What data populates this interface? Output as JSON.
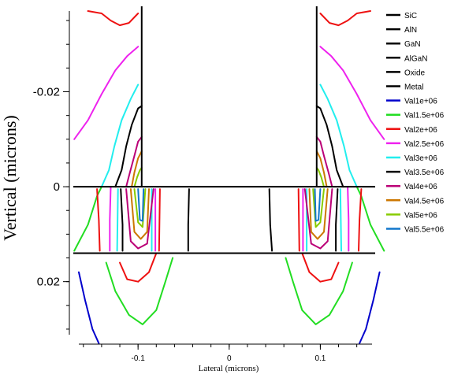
{
  "chart_data": {
    "type": "line",
    "xlabel": "Lateral (microns)",
    "ylabel": "Vertical (microns)",
    "xlim": [
      -0.165,
      0.155
    ],
    "ylim": [
      -0.038,
      0.032
    ],
    "y_inverted": true,
    "x_ticks": [
      -0.1,
      0,
      0.1
    ],
    "x_tick_labels": [
      "-0.1",
      "0",
      "0.1"
    ],
    "y_ticks": [
      -0.02,
      0,
      0.02
    ],
    "y_tick_labels": [
      "-0.02",
      "0",
      "0.02"
    ],
    "legend_position": "right",
    "legend": [
      {
        "label": "SiC",
        "color": "#000000"
      },
      {
        "label": "AlN",
        "color": "#000000"
      },
      {
        "label": "GaN",
        "color": "#000000"
      },
      {
        "label": "AlGaN",
        "color": "#000000"
      },
      {
        "label": "Oxide",
        "color": "#000000"
      },
      {
        "label": "Metal",
        "color": "#000000"
      },
      {
        "label": "Val1e+06",
        "color": "#0000cc"
      },
      {
        "label": "Val1.5e+06",
        "color": "#22dd22"
      },
      {
        "label": "Val2e+06",
        "color": "#ee1111"
      },
      {
        "label": "Val2.5e+06",
        "color": "#ee22ee"
      },
      {
        "label": "Val3e+06",
        "color": "#22eeee"
      },
      {
        "label": "Val3.5e+06",
        "color": "#000000"
      },
      {
        "label": "Val4e+06",
        "color": "#bb0077"
      },
      {
        "label": "Val4.5e+06",
        "color": "#cc7700"
      },
      {
        "label": "Val5e+06",
        "color": "#88cc00"
      },
      {
        "label": "Val5.5e+06",
        "color": "#1177cc"
      }
    ],
    "structure": {
      "interface_y": [
        0,
        0.014
      ],
      "gate_edges_x": [
        -0.096,
        0.096
      ]
    },
    "series": [
      {
        "name": "Val1e+06",
        "color": "#0000cc",
        "polylines": [
          {
            "x": [
              -0.165,
              -0.158,
              -0.15,
              -0.143
            ],
            "y": [
              0.018,
              0.024,
              0.03,
              0.033
            ]
          },
          {
            "x": [
              0.143,
              0.15,
              0.158,
              0.165
            ],
            "y": [
              0.033,
              0.03,
              0.024,
              0.018
            ]
          }
        ]
      },
      {
        "name": "Val1.5e+06",
        "color": "#22dd22",
        "polylines": [
          {
            "x": [
              -0.17,
              -0.155,
              -0.145,
              -0.14
            ],
            "y": [
              0.0135,
              0.008,
              0.002,
              0
            ]
          },
          {
            "x": [
              -0.135,
              -0.125,
              -0.11,
              -0.095,
              -0.08,
              -0.07,
              -0.062
            ],
            "y": [
              0.016,
              0.022,
              0.027,
              0.029,
              0.026,
              0.02,
              0.015
            ]
          },
          {
            "x": [
              0.062,
              0.07,
              0.08,
              0.095,
              0.11,
              0.125,
              0.135
            ],
            "y": [
              0.015,
              0.02,
              0.026,
              0.029,
              0.027,
              0.022,
              0.016
            ]
          },
          {
            "x": [
              0.14,
              0.145,
              0.155,
              0.17
            ],
            "y": [
              0,
              0.002,
              0.008,
              0.0135
            ]
          }
        ]
      },
      {
        "name": "Val2e+06",
        "color": "#ee1111",
        "polylines": [
          {
            "x": [
              -0.155,
              -0.14,
              -0.13,
              -0.12,
              -0.11,
              -0.1
            ],
            "y": [
              -0.037,
              -0.0365,
              -0.035,
              -0.034,
              -0.0345,
              -0.0365
            ]
          },
          {
            "x": [
              -0.145,
              -0.143,
              -0.142
            ],
            "y": [
              0.0005,
              0.007,
              0.0135
            ]
          },
          {
            "x": [
              -0.12,
              -0.112,
              -0.1,
              -0.088,
              -0.08
            ],
            "y": [
              0.016,
              0.0195,
              0.02,
              0.018,
              0.014
            ]
          },
          {
            "x": [
              -0.076,
              -0.077
            ],
            "y": [
              0.0005,
              0.0135
            ]
          },
          {
            "x": [
              0.076,
              0.077
            ],
            "y": [
              0.0005,
              0.0135
            ]
          },
          {
            "x": [
              0.08,
              0.088,
              0.1,
              0.112,
              0.12
            ],
            "y": [
              0.014,
              0.018,
              0.02,
              0.0195,
              0.016
            ]
          },
          {
            "x": [
              0.142,
              0.143,
              0.145
            ],
            "y": [
              0.0135,
              0.007,
              0.0005
            ]
          },
          {
            "x": [
              0.1,
              0.11,
              0.12,
              0.13,
              0.14,
              0.155
            ],
            "y": [
              -0.0365,
              -0.0345,
              -0.034,
              -0.035,
              -0.0365,
              -0.037
            ]
          }
        ]
      },
      {
        "name": "Val2.5e+06",
        "color": "#ee22ee",
        "polylines": [
          {
            "x": [
              -0.17,
              -0.155,
              -0.14,
              -0.125,
              -0.112,
              -0.1
            ],
            "y": [
              -0.01,
              -0.014,
              -0.0195,
              -0.0245,
              -0.0275,
              -0.0295
            ]
          },
          {
            "x": [
              -0.13,
              -0.131,
              -0.131
            ],
            "y": [
              0,
              0.007,
              0.0135
            ]
          },
          {
            "x": [
              -0.081,
              -0.081
            ],
            "y": [
              0.0005,
              0.0135
            ]
          },
          {
            "x": [
              0.081,
              0.081
            ],
            "y": [
              0.0005,
              0.0135
            ]
          },
          {
            "x": [
              0.131,
              0.131,
              0.13
            ],
            "y": [
              0.0135,
              0.007,
              0
            ]
          },
          {
            "x": [
              0.1,
              0.112,
              0.125,
              0.14,
              0.155,
              0.17
            ],
            "y": [
              -0.0295,
              -0.0275,
              -0.0245,
              -0.0195,
              -0.014,
              -0.01
            ]
          }
        ]
      },
      {
        "name": "Val3e+06",
        "color": "#22eeee",
        "polylines": [
          {
            "x": [
              -0.14,
              -0.132,
              -0.126,
              -0.118,
              -0.108,
              -0.1
            ],
            "y": [
              0,
              -0.0035,
              -0.0085,
              -0.014,
              -0.0185,
              -0.0215
            ]
          },
          {
            "x": [
              -0.122,
              -0.123
            ],
            "y": [
              0.0005,
              0.0135
            ]
          },
          {
            "x": [
              -0.085,
              -0.085
            ],
            "y": [
              0.0005,
              0.0135
            ]
          },
          {
            "x": [
              0.085,
              0.085
            ],
            "y": [
              0.0005,
              0.0135
            ]
          },
          {
            "x": [
              0.123,
              0.122
            ],
            "y": [
              0.0135,
              0.0005
            ]
          },
          {
            "x": [
              0.1,
              0.108,
              0.118,
              0.126,
              0.132,
              0.14
            ],
            "y": [
              -0.0215,
              -0.0185,
              -0.014,
              -0.0085,
              -0.0035,
              0
            ]
          }
        ]
      },
      {
        "name": "Val3.5e+06",
        "color": "#000000",
        "polylines": [
          {
            "x": [
              -0.125,
              -0.118,
              -0.113,
              -0.107,
              -0.1,
              -0.096
            ],
            "y": [
              0,
              -0.0035,
              -0.0085,
              -0.013,
              -0.0165,
              -0.017
            ]
          },
          {
            "x": [
              -0.119,
              -0.117,
              -0.117
            ],
            "y": [
              0.0005,
              0.008,
              0.0135
            ]
          },
          {
            "x": [
              -0.044,
              -0.045,
              -0.045
            ],
            "y": [
              0.0005,
              0.008,
              0.0135
            ]
          },
          {
            "x": [
              0.044,
              0.045,
              0.047
            ],
            "y": [
              0.0005,
              0.008,
              0.0135
            ]
          },
          {
            "x": [
              0.117,
              0.117,
              0.119
            ],
            "y": [
              0.0135,
              0.008,
              0.0005
            ]
          },
          {
            "x": [
              0.096,
              0.1,
              0.107,
              0.113,
              0.118,
              0.125
            ],
            "y": [
              -0.017,
              -0.0165,
              -0.013,
              -0.0085,
              -0.0035,
              0
            ]
          }
        ]
      },
      {
        "name": "Val4e+06",
        "color": "#bb0077",
        "polylines": [
          {
            "x": [
              -0.113,
              -0.109,
              -0.104,
              -0.1,
              -0.096
            ],
            "y": [
              0,
              -0.003,
              -0.0065,
              -0.0095,
              -0.0105
            ]
          },
          {
            "x": [
              -0.113,
              -0.108,
              -0.1,
              -0.09,
              -0.083
            ],
            "y": [
              0.0005,
              0.0115,
              0.013,
              0.012,
              0.0005
            ]
          },
          {
            "x": [
              0.083,
              0.09,
              0.1,
              0.108,
              0.113
            ],
            "y": [
              0.0005,
              0.012,
              0.013,
              0.0115,
              0.0005
            ]
          },
          {
            "x": [
              0.096,
              0.1,
              0.104,
              0.109,
              0.113
            ],
            "y": [
              -0.0105,
              -0.0095,
              -0.0065,
              -0.003,
              0
            ]
          }
        ]
      },
      {
        "name": "Val4.5e+06",
        "color": "#cc7700",
        "polylines": [
          {
            "x": [
              -0.107,
              -0.104,
              -0.1,
              -0.096
            ],
            "y": [
              0,
              -0.003,
              -0.006,
              -0.0075
            ]
          },
          {
            "x": [
              -0.108,
              -0.104,
              -0.097,
              -0.09,
              -0.088
            ],
            "y": [
              0.0005,
              0.0095,
              0.011,
              0.0095,
              0.0005
            ]
          },
          {
            "x": [
              0.088,
              0.09,
              0.097,
              0.104,
              0.108
            ],
            "y": [
              0.0005,
              0.0095,
              0.011,
              0.0095,
              0.0005
            ]
          },
          {
            "x": [
              0.096,
              0.1,
              0.104,
              0.107
            ],
            "y": [
              -0.0075,
              -0.006,
              -0.003,
              0
            ]
          }
        ]
      },
      {
        "name": "Val5e+06",
        "color": "#88cc00",
        "polylines": [
          {
            "x": [
              -0.104,
              -0.101,
              -0.098,
              -0.096
            ],
            "y": [
              0,
              -0.002,
              -0.0035,
              -0.004
            ]
          },
          {
            "x": [
              -0.104,
              -0.1,
              -0.095,
              -0.092
            ],
            "y": [
              0.0005,
              0.0075,
              0.0085,
              0.0005
            ]
          },
          {
            "x": [
              0.092,
              0.095,
              0.1,
              0.104
            ],
            "y": [
              0.0005,
              0.0085,
              0.0075,
              0.0005
            ]
          },
          {
            "x": [
              0.096,
              0.098,
              0.101,
              0.104
            ],
            "y": [
              -0.004,
              -0.0035,
              -0.002,
              0
            ]
          }
        ]
      },
      {
        "name": "Val5.5e+06",
        "color": "#1177cc",
        "polylines": [
          {
            "x": [
              -0.1,
              -0.098,
              -0.095,
              -0.094
            ],
            "y": [
              0.0005,
              0.007,
              0.0072,
              0.0005
            ]
          },
          {
            "x": [
              0.094,
              0.095,
              0.098,
              0.1
            ],
            "y": [
              0.0005,
              0.0072,
              0.007,
              0.0005
            ]
          }
        ]
      }
    ]
  }
}
